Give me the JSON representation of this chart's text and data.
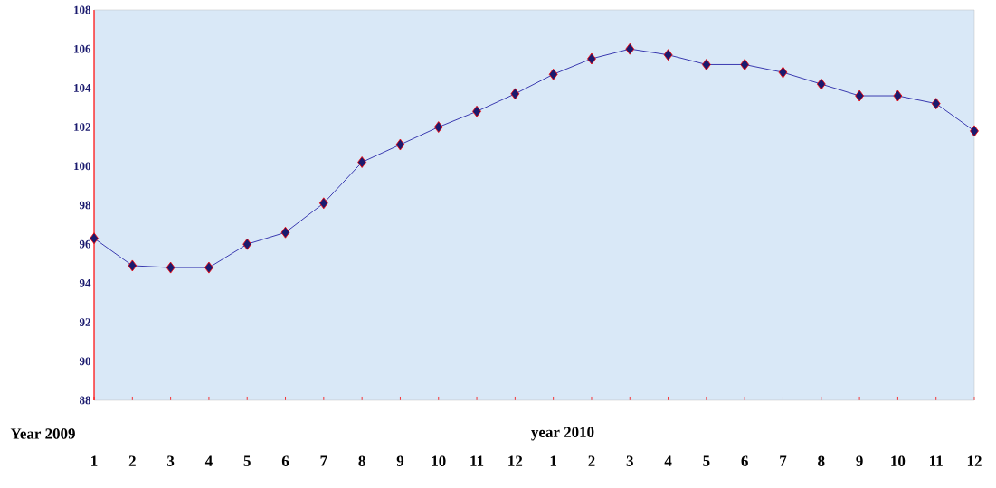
{
  "chart_data": {
    "type": "line",
    "categories": [
      "1",
      "2",
      "3",
      "4",
      "5",
      "6",
      "7",
      "8",
      "9",
      "10",
      "11",
      "12",
      "1",
      "2",
      "3",
      "4",
      "5",
      "6",
      "7",
      "8",
      "9",
      "10",
      "11",
      "12"
    ],
    "series": [
      {
        "color": "#3a3ab0",
        "values": [
          96.3,
          94.9,
          94.8,
          94.8,
          96.0,
          96.6,
          98.1,
          100.2,
          101.1,
          102.0,
          102.8,
          103.7,
          104.7,
          105.5,
          106.0,
          105.7,
          105.2,
          105.2,
          104.8,
          104.2,
          103.6,
          103.6,
          103.2,
          101.8
        ]
      }
    ],
    "ylim": [
      88,
      108
    ],
    "yticks": [
      88,
      90,
      92,
      94,
      96,
      98,
      100,
      102,
      104,
      106,
      108
    ],
    "marker": "diamond",
    "line_style": "solid",
    "grid": false,
    "annotations": [
      "Year 2009",
      "year 2010"
    ]
  }
}
